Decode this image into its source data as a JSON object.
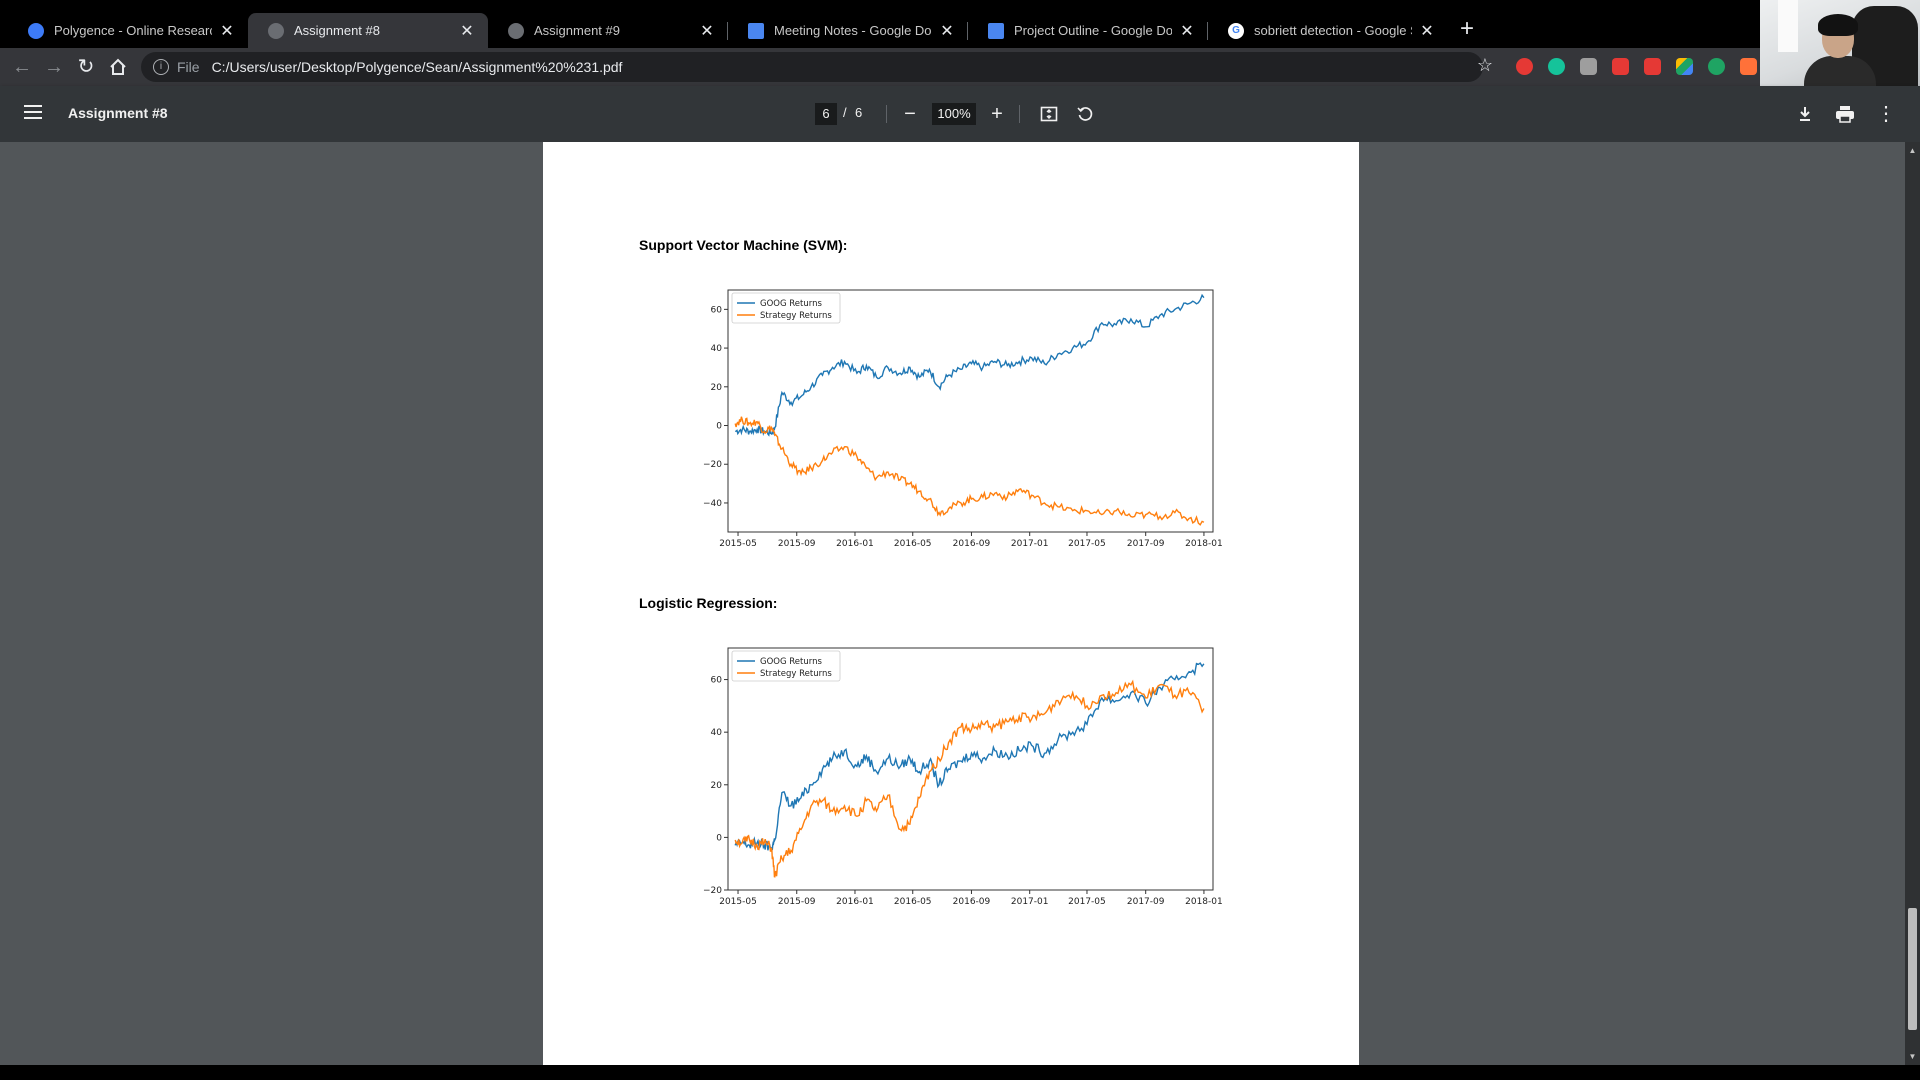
{
  "browser": {
    "tabs": [
      {
        "title": "Polygence - Online Research Opp",
        "favicon_color": "#3d7bf7",
        "favicon": "globe-icon"
      },
      {
        "title": "Assignment #8",
        "favicon_color": "#6a6d72",
        "favicon": "globe-icon"
      },
      {
        "title": "Assignment #9",
        "favicon_color": "#6a6d72",
        "favicon": "globe-icon"
      },
      {
        "title": "Meeting Notes - Google Docs",
        "favicon_color": "#4a86f0",
        "favicon": "docs-icon"
      },
      {
        "title": "Project Outline - Google Docs",
        "favicon_color": "#4a86f0",
        "favicon": "docs-icon"
      },
      {
        "title": "sobriett detection - Google Searc",
        "favicon_color": "#ffffff",
        "favicon": "google-icon"
      }
    ],
    "active_tab_index": 1,
    "new_tab": "+",
    "url_scheme": "File",
    "url_path": "C:/Users/user/Desktop/Polygence/Sean/Assignment%20%231.pdf",
    "extensions": [
      "#e53935",
      "#15c39a",
      "#9e9e9e",
      "#e53935",
      "#e53935",
      "#fbbc04",
      "#1fa463",
      "#ff7139"
    ]
  },
  "pdf_viewer": {
    "title": "Assignment #8",
    "current_page": "6",
    "page_separator": "/",
    "total_pages": "6",
    "zoom": "100%"
  },
  "document": {
    "svm_heading": "Support Vector Machine (SVM):",
    "logreg_heading": "Logistic Regression:"
  },
  "chart_data": [
    {
      "type": "line",
      "x_ticks": [
        "2015-05",
        "2015-09",
        "2016-01",
        "2016-05",
        "2016-09",
        "2017-01",
        "2017-05",
        "2017-09",
        "2018-01"
      ],
      "ylim": [
        -55,
        70
      ],
      "y_ticks": [
        "60",
        "40",
        "20",
        "0",
        "−20",
        "−40"
      ],
      "y_tick_values": [
        60,
        40,
        20,
        0,
        -20,
        -40
      ],
      "legend_position": "top-left",
      "series": [
        {
          "name": "GOOG Returns",
          "color": "#1f77b4",
          "x": [
            "2015-04-25",
            "2015-05-10",
            "2015-05-25",
            "2015-06-10",
            "2015-06-25",
            "2015-07-10",
            "2015-07-17",
            "2015-08-01",
            "2015-08-20",
            "2015-09-10",
            "2015-10-01",
            "2015-10-25",
            "2015-11-15",
            "2015-12-10",
            "2016-01-05",
            "2016-01-25",
            "2016-02-15",
            "2016-03-10",
            "2016-04-05",
            "2016-04-25",
            "2016-05-15",
            "2016-06-05",
            "2016-06-25",
            "2016-07-15",
            "2016-08-10",
            "2016-09-01",
            "2016-09-25",
            "2016-10-20",
            "2016-11-15",
            "2016-12-10",
            "2017-01-05",
            "2017-02-01",
            "2017-03-01",
            "2017-04-01",
            "2017-05-01",
            "2017-06-01",
            "2017-07-01",
            "2017-08-01",
            "2017-09-01",
            "2017-10-01",
            "2017-11-01",
            "2017-12-01",
            "2018-01-01"
          ],
          "y": [
            -3,
            -2,
            -3,
            -2,
            -3,
            -4,
            -1,
            17,
            12,
            15,
            20,
            26,
            30,
            33,
            27,
            31,
            25,
            30,
            27,
            30,
            25,
            29,
            20,
            26,
            29,
            32,
            30,
            33,
            31,
            33,
            35,
            32,
            37,
            40,
            43,
            53,
            52,
            55,
            51,
            57,
            60,
            63,
            66
          ]
        },
        {
          "name": "Strategy Returns",
          "color": "#ff7f0e",
          "x": [
            "2015-04-25",
            "2015-05-10",
            "2015-05-25",
            "2015-06-10",
            "2015-06-25",
            "2015-07-10",
            "2015-07-17",
            "2015-08-01",
            "2015-08-20",
            "2015-09-10",
            "2015-10-01",
            "2015-10-25",
            "2015-11-15",
            "2015-12-10",
            "2016-01-05",
            "2016-01-25",
            "2016-02-15",
            "2016-03-10",
            "2016-04-05",
            "2016-04-25",
            "2016-05-15",
            "2016-06-05",
            "2016-06-25",
            "2016-07-15",
            "2016-08-10",
            "2016-09-01",
            "2016-09-25",
            "2016-10-20",
            "2016-11-15",
            "2016-12-10",
            "2017-01-05",
            "2017-02-01",
            "2017-03-01",
            "2017-04-01",
            "2017-05-01",
            "2017-06-01",
            "2017-07-01",
            "2017-08-01",
            "2017-09-01",
            "2017-10-01",
            "2017-11-01",
            "2017-12-01",
            "2018-01-01"
          ],
          "y": [
            1,
            3,
            1,
            2,
            -3,
            -1,
            -5,
            -12,
            -20,
            -25,
            -22,
            -18,
            -14,
            -11,
            -16,
            -22,
            -27,
            -24,
            -28,
            -30,
            -34,
            -38,
            -45,
            -43,
            -40,
            -38,
            -37,
            -35,
            -37,
            -33,
            -36,
            -40,
            -42,
            -44,
            -44,
            -46,
            -44,
            -47,
            -46,
            -47,
            -45,
            -48,
            -50
          ]
        }
      ]
    },
    {
      "type": "line",
      "x_ticks": [
        "2015-05",
        "2015-09",
        "2016-01",
        "2016-05",
        "2016-09",
        "2017-01",
        "2017-05",
        "2017-09",
        "2018-01"
      ],
      "ylim": [
        -20,
        72
      ],
      "y_ticks": [
        "60",
        "40",
        "20",
        "0",
        "−20"
      ],
      "y_tick_values": [
        60,
        40,
        20,
        0,
        -20
      ],
      "legend_position": "top-left",
      "series": [
        {
          "name": "GOOG Returns",
          "color": "#1f77b4",
          "x": [
            "2015-04-25",
            "2015-05-10",
            "2015-05-25",
            "2015-06-10",
            "2015-06-25",
            "2015-07-10",
            "2015-07-17",
            "2015-08-01",
            "2015-08-20",
            "2015-09-10",
            "2015-10-01",
            "2015-10-25",
            "2015-11-15",
            "2015-12-10",
            "2016-01-05",
            "2016-01-25",
            "2016-02-15",
            "2016-03-10",
            "2016-04-05",
            "2016-04-25",
            "2016-05-15",
            "2016-06-05",
            "2016-06-25",
            "2016-07-15",
            "2016-08-10",
            "2016-09-01",
            "2016-09-25",
            "2016-10-20",
            "2016-11-15",
            "2016-12-10",
            "2017-01-05",
            "2017-02-01",
            "2017-03-01",
            "2017-04-01",
            "2017-05-01",
            "2017-06-01",
            "2017-07-01",
            "2017-08-01",
            "2017-09-01",
            "2017-10-01",
            "2017-11-01",
            "2017-12-01",
            "2018-01-01"
          ],
          "y": [
            -3,
            -2,
            -3,
            -2,
            -3,
            -4,
            -1,
            17,
            12,
            15,
            20,
            26,
            30,
            33,
            27,
            31,
            25,
            30,
            27,
            30,
            25,
            29,
            20,
            26,
            29,
            32,
            30,
            33,
            31,
            33,
            35,
            32,
            37,
            40,
            43,
            53,
            52,
            55,
            51,
            57,
            60,
            63,
            66
          ]
        },
        {
          "name": "Strategy Returns",
          "color": "#ff7f0e",
          "x": [
            "2015-04-25",
            "2015-05-10",
            "2015-05-25",
            "2015-06-10",
            "2015-06-25",
            "2015-07-10",
            "2015-07-17",
            "2015-08-01",
            "2015-08-20",
            "2015-09-10",
            "2015-10-01",
            "2015-10-25",
            "2015-11-15",
            "2015-12-10",
            "2016-01-05",
            "2016-01-25",
            "2016-02-15",
            "2016-03-10",
            "2016-04-05",
            "2016-04-25",
            "2016-05-15",
            "2016-06-05",
            "2016-06-25",
            "2016-07-15",
            "2016-08-10",
            "2016-09-01",
            "2016-09-25",
            "2016-10-20",
            "2016-11-15",
            "2016-12-10",
            "2017-01-05",
            "2017-02-01",
            "2017-03-01",
            "2017-04-01",
            "2017-05-01",
            "2017-06-01",
            "2017-07-01",
            "2017-08-01",
            "2017-09-01",
            "2017-10-01",
            "2017-11-01",
            "2017-12-01",
            "2018-01-01"
          ],
          "y": [
            -1,
            -2,
            -1,
            -3,
            -2,
            -4,
            -15,
            -8,
            -5,
            3,
            12,
            14,
            10,
            12,
            8,
            14,
            10,
            16,
            3,
            5,
            15,
            25,
            30,
            36,
            42,
            41,
            43,
            42,
            44,
            46,
            45,
            47,
            52,
            55,
            50,
            54,
            55,
            58,
            53,
            58,
            54,
            55,
            49
          ]
        }
      ]
    }
  ]
}
